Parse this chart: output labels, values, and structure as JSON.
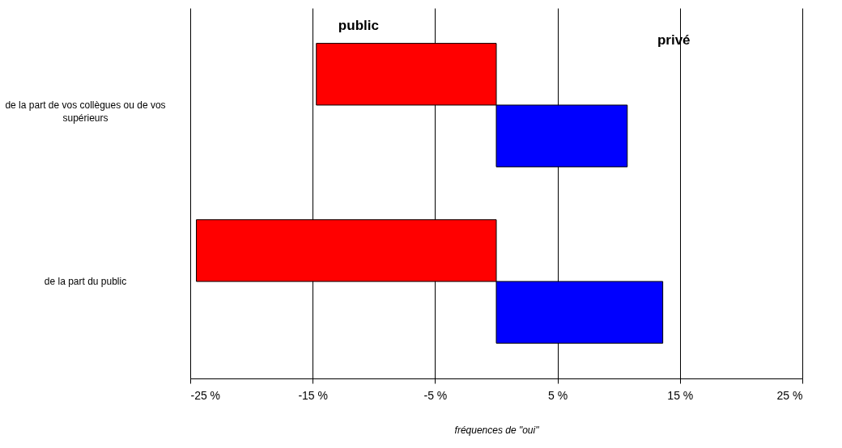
{
  "chart_data": {
    "type": "bar",
    "orientation": "horizontal",
    "xlabel": "fréquences de \"oui\"",
    "categories": [
      "de la part de vos collègues ou de vos supérieurs",
      "de la part du public"
    ],
    "series": [
      {
        "name": "public",
        "color": "#ff0000",
        "values": [
          -14.7,
          -24.5
        ]
      },
      {
        "name": "privé",
        "color": "#0000ff",
        "values": [
          10.7,
          13.6
        ]
      }
    ],
    "xlim": [
      -25,
      25
    ],
    "xticks": [
      {
        "value": -25,
        "label": "-25 %"
      },
      {
        "value": -15,
        "label": "-15 %"
      },
      {
        "value": -5,
        "label": "-5 %"
      },
      {
        "value": 5,
        "label": "5 %"
      },
      {
        "value": 15,
        "label": "15 %"
      },
      {
        "value": 25,
        "label": "25 %"
      }
    ],
    "grid": "x",
    "legend": false
  }
}
